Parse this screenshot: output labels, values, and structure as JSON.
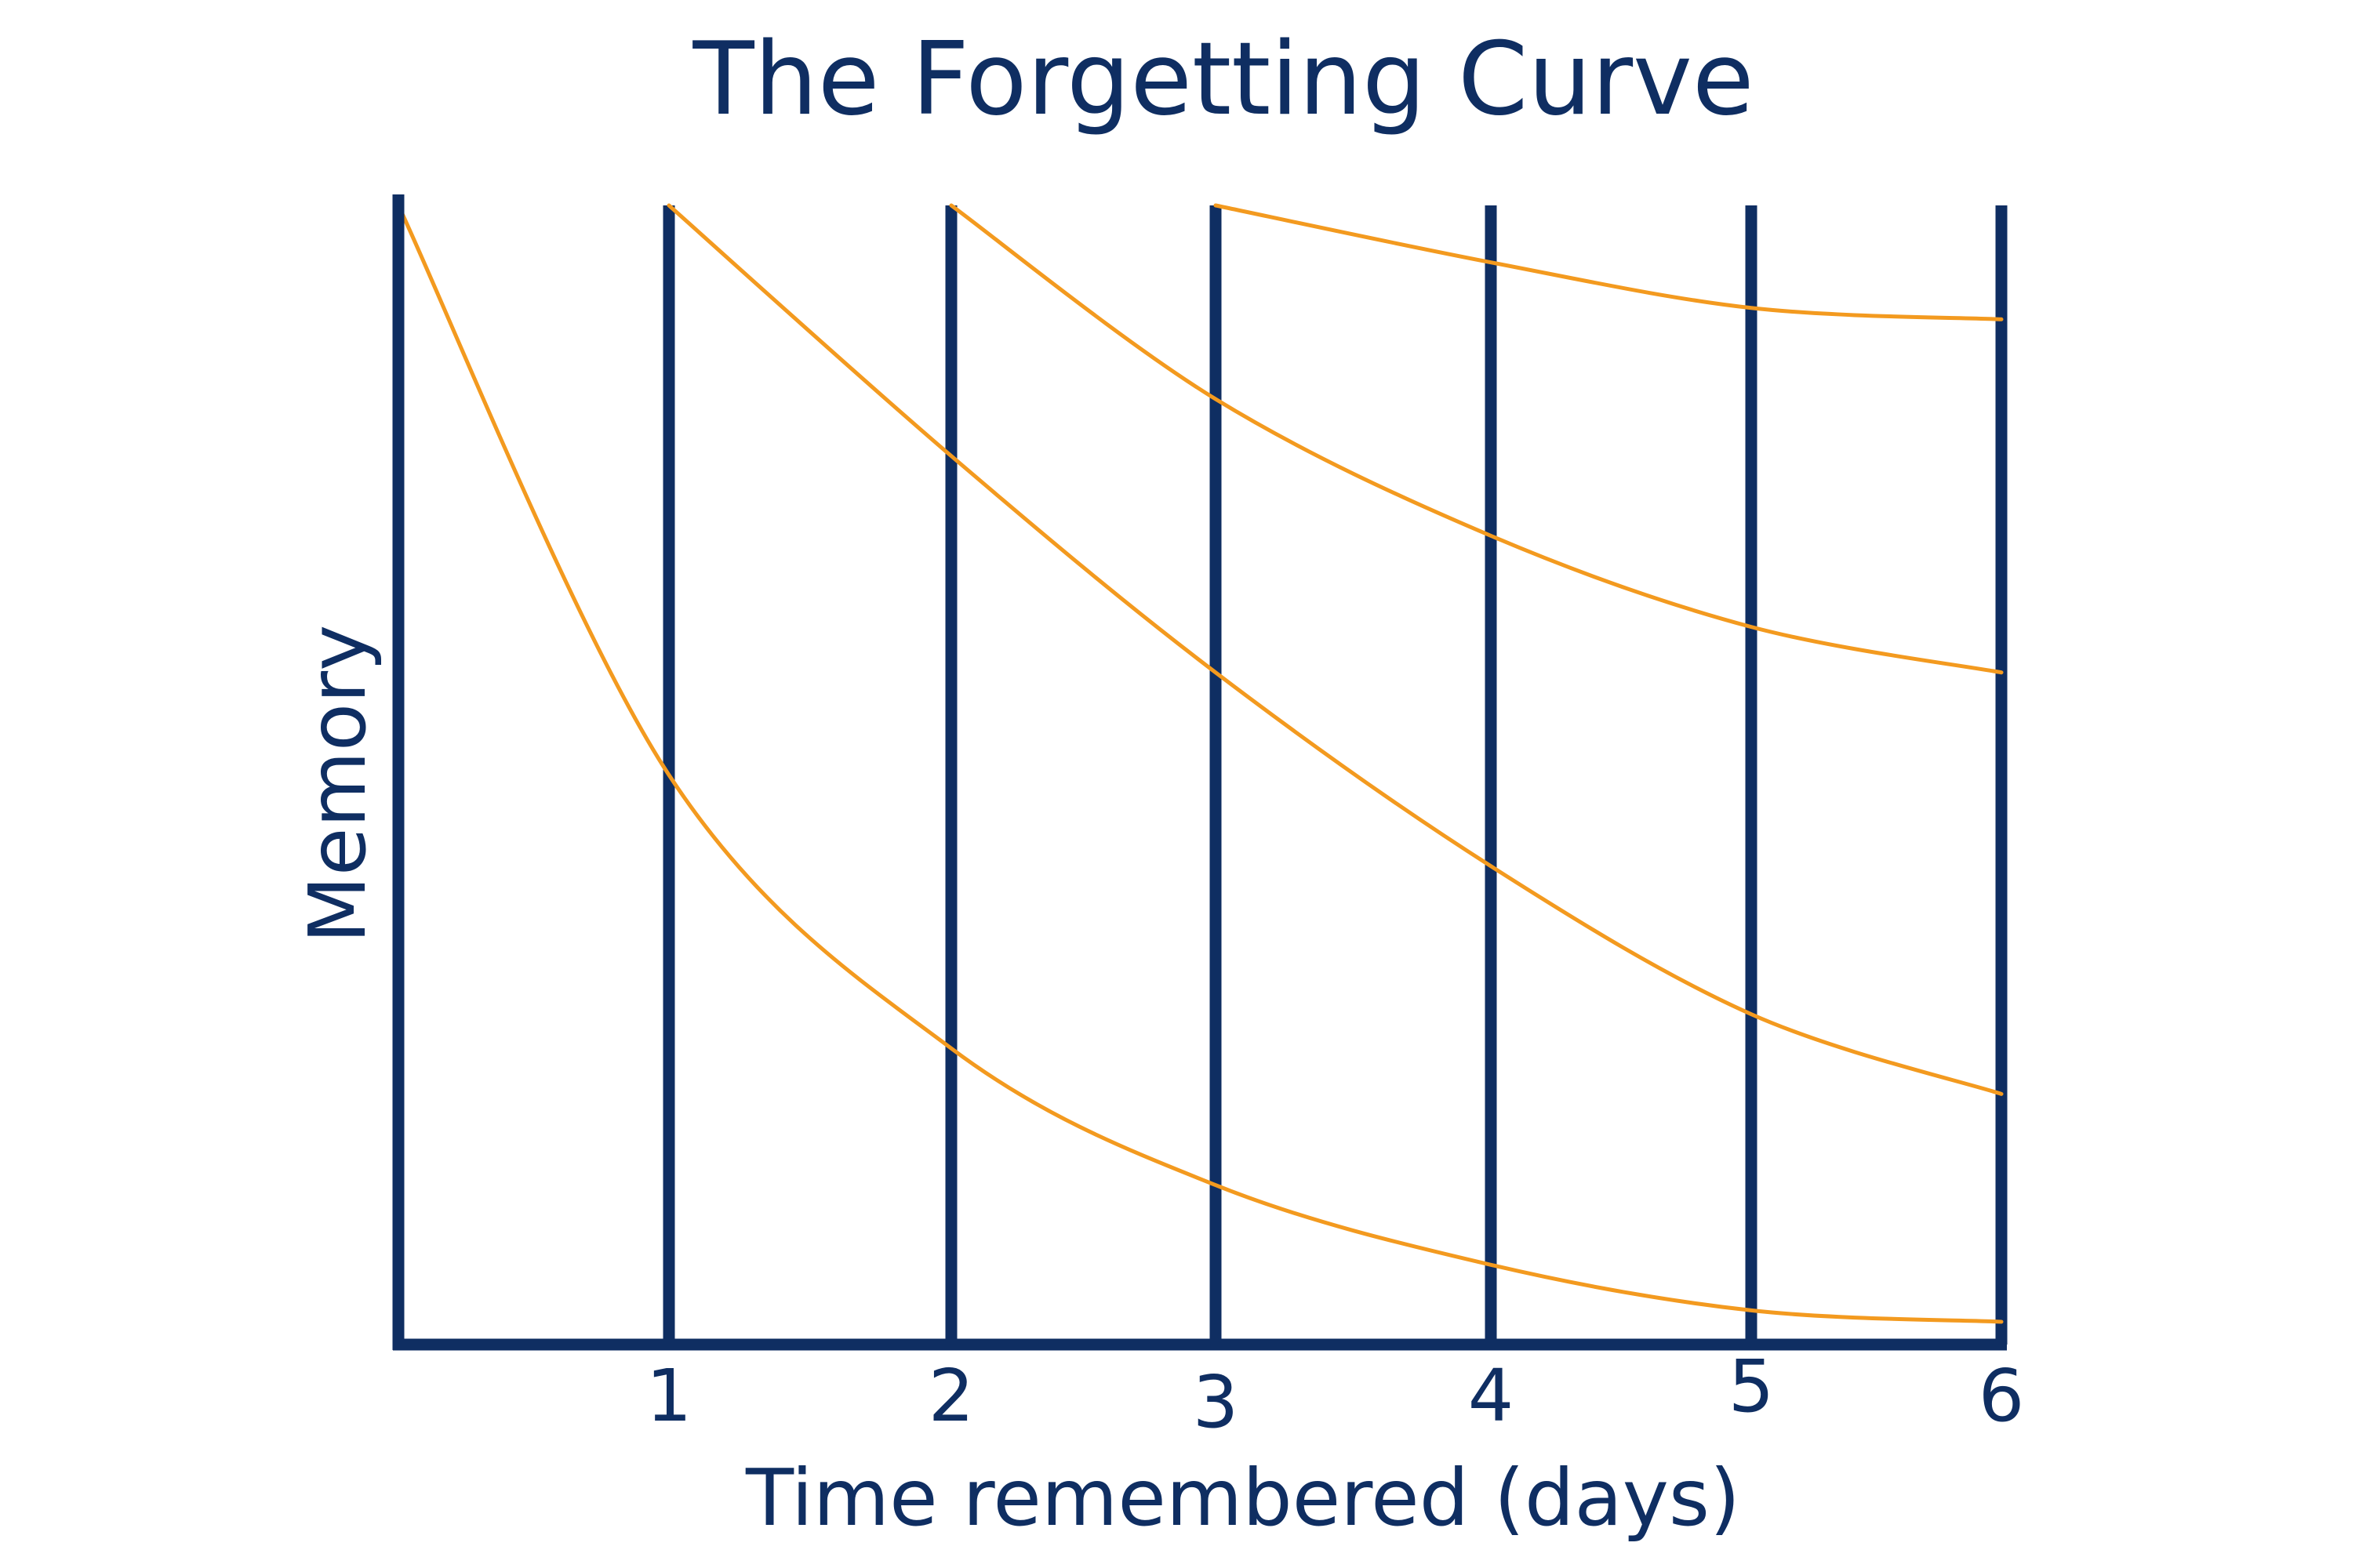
{
  "chart_data": {
    "type": "line",
    "title": "The Forgetting Curve",
    "xlabel": "Time remembered (days)",
    "ylabel": "Memory",
    "xlim": [
      0,
      6
    ],
    "ylim": [
      0,
      100
    ],
    "x_ticks": [
      "1",
      "2",
      "3",
      "4",
      "5",
      "6"
    ],
    "grid": "vertical",
    "series": [
      {
        "x": [
          0,
          1,
          2,
          3,
          4,
          5,
          6
        ],
        "values": [
          100,
          50,
          26,
          14,
          7,
          3,
          2
        ]
      },
      {
        "x": [
          1,
          2,
          3,
          4,
          5,
          6
        ],
        "values": [
          100,
          78,
          59,
          42,
          29,
          22
        ]
      },
      {
        "x": [
          2,
          3,
          4,
          5,
          6
        ],
        "values": [
          100,
          83,
          71,
          63,
          59
        ]
      },
      {
        "x": [
          3,
          4,
          5,
          6
        ],
        "values": [
          100,
          95,
          91,
          90
        ]
      }
    ],
    "colors": {
      "axis": "#0f2e62",
      "curve": "#f39a1f",
      "text": "#0f2e62"
    }
  }
}
